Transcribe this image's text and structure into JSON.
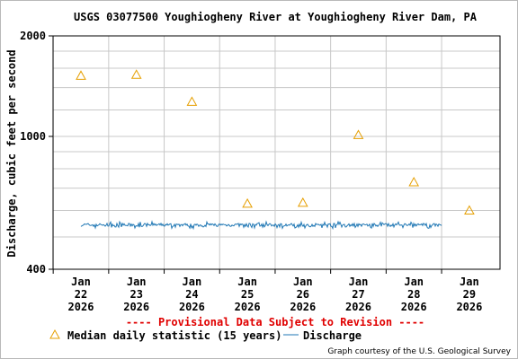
{
  "chart_data": {
    "type": "scatter",
    "title": "USGS 03077500 Youghiogheny River at Youghiogheny River Dam, PA",
    "ylabel": "Discharge, cubic feet per second",
    "y_scale": "log",
    "ylim": [
      400,
      2000
    ],
    "y_tick_labels": [
      "2000",
      "1000",
      "400"
    ],
    "x_tick_labels": [
      {
        "month": "Jan",
        "day": "22",
        "year": "2026"
      },
      {
        "month": "Jan",
        "day": "23",
        "year": "2026"
      },
      {
        "month": "Jan",
        "day": "24",
        "year": "2026"
      },
      {
        "month": "Jan",
        "day": "25",
        "year": "2026"
      },
      {
        "month": "Jan",
        "day": "26",
        "year": "2026"
      },
      {
        "month": "Jan",
        "day": "27",
        "year": "2026"
      },
      {
        "month": "Jan",
        "day": "28",
        "year": "2026"
      },
      {
        "month": "Jan",
        "day": "29",
        "year": "2026"
      }
    ],
    "grid": true,
    "legend_placement": "bottom",
    "series": [
      {
        "name": "Median daily statistic (15 years)",
        "marker": "triangle",
        "color": "#e69f00",
        "points": [
          {
            "x": "2026-01-22",
            "y": 1520
          },
          {
            "x": "2026-01-23",
            "y": 1530
          },
          {
            "x": "2026-01-24",
            "y": 1270
          },
          {
            "x": "2026-01-25",
            "y": 629
          },
          {
            "x": "2026-01-26",
            "y": 633
          },
          {
            "x": "2026-01-27",
            "y": 1010
          },
          {
            "x": "2026-01-28",
            "y": 729
          },
          {
            "x": "2026-01-29",
            "y": 600
          }
        ]
      },
      {
        "name": "Discharge",
        "color": "#1f77b4",
        "start": "2026-01-22",
        "end": "2026-01-28 12:00",
        "typical": 543,
        "low": 530,
        "high": 555
      }
    ],
    "notice": "---- Provisional Data Subject to Revision ----",
    "credit": "Graph courtesy of the U.S. Geological Survey"
  }
}
